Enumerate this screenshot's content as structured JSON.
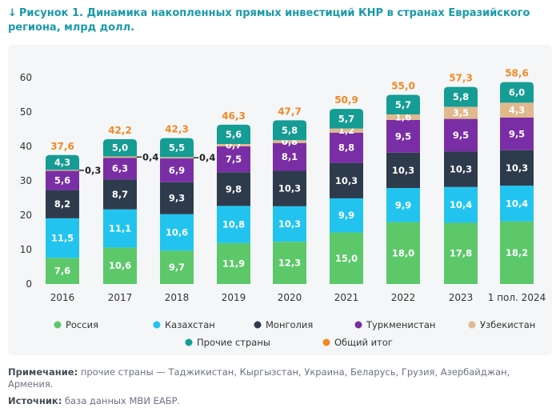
{
  "header": {
    "arrow": "↓",
    "title": "Рисунок 1. Динамика накопленных прямых инвестиций КНР в странах Евразийского региона, млрд долл."
  },
  "chart_data": {
    "type": "bar",
    "stacked": true,
    "categories": [
      "2016",
      "2017",
      "2018",
      "2019",
      "2020",
      "2021",
      "2022",
      "2023",
      "1 пол. 2024"
    ],
    "ylim": [
      0,
      60
    ],
    "yticks": [
      "0",
      "10",
      "20",
      "30",
      "40",
      "50",
      "60"
    ],
    "grid": false,
    "legend_position": "bottom",
    "series": [
      {
        "name": "Россия",
        "color": "#5cc86a",
        "values": [
          7.6,
          10.6,
          9.7,
          11.9,
          12.3,
          15.0,
          18.0,
          17.8,
          18.2
        ],
        "labels": [
          "7,6",
          "10,6",
          "9,7",
          "11,9",
          "12,3",
          "15,0",
          "18,0",
          "17,8",
          "18,2"
        ]
      },
      {
        "name": "Казахстан",
        "color": "#22c4ef",
        "values": [
          11.5,
          11.1,
          10.6,
          10.8,
          10.3,
          9.9,
          9.9,
          10.4,
          10.4
        ],
        "labels": [
          "11,5",
          "11,1",
          "10,6",
          "10,8",
          "10,3",
          "9,9",
          "9,9",
          "10,4",
          "10,4"
        ]
      },
      {
        "name": "Монголия",
        "color": "#2e3b4d",
        "values": [
          8.2,
          8.7,
          9.3,
          9.8,
          10.3,
          10.3,
          10.3,
          10.3,
          10.3
        ],
        "labels": [
          "8,2",
          "8,7",
          "9,3",
          "9,8",
          "10,3",
          "10,3",
          "10,3",
          "10,3",
          "10,3"
        ]
      },
      {
        "name": "Туркменистан",
        "color": "#7a2ea6",
        "values": [
          5.6,
          6.3,
          6.9,
          7.5,
          8.1,
          8.8,
          9.5,
          9.5,
          9.5
        ],
        "labels": [
          "5,6",
          "6,3",
          "6,9",
          "7,5",
          "8,1",
          "8,8",
          "9,5",
          "9,5",
          "9,5"
        ]
      },
      {
        "name": "Узбекистан",
        "color": "#e0b98e",
        "values": [
          0.3,
          0.4,
          0.4,
          0.7,
          0.8,
          1.2,
          1.6,
          3.5,
          4.3
        ],
        "labels": [
          "0,3",
          "0,4",
          "0,4",
          "0,7",
          "0,8",
          "1,2",
          "1,6",
          "3,5",
          "4,3"
        ]
      },
      {
        "name": "Прочие страны",
        "color": "#159c95",
        "values": [
          4.3,
          5.0,
          5.5,
          5.6,
          5.8,
          5.7,
          5.7,
          5.8,
          6.0
        ],
        "labels": [
          "4,3",
          "5,0",
          "5,5",
          "5,6",
          "5,8",
          "5,7",
          "5,7",
          "5,8",
          "6,0"
        ]
      }
    ],
    "totals": {
      "name": "Общий итог",
      "color": "#f08a24",
      "values": [
        37.6,
        42.2,
        42.3,
        46.3,
        47.7,
        50.9,
        55.0,
        57.3,
        58.6
      ],
      "labels": [
        "37,6",
        "42,2",
        "42,3",
        "46,3",
        "47,7",
        "50,9",
        "55,0",
        "57,3",
        "58,6"
      ]
    }
  },
  "footer": {
    "note_label": "Примечание:",
    "note_text": " прочие страны — Таджикистан, Кыргызстан, Украина, Беларусь, Грузия, Азербайджан, Армения.",
    "source_label": "Источник:",
    "source_text": " база данных МВИ ЕАБР."
  }
}
